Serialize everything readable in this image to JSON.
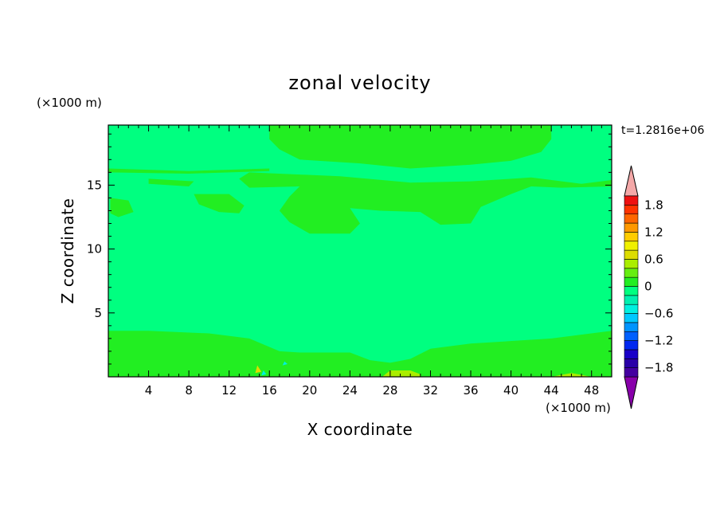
{
  "chart_data": {
    "type": "heatmap",
    "title": "zonal velocity",
    "xlabel": "X coordinate",
    "ylabel": "Z coordinate",
    "x_unit": "(×1000 m)",
    "y_unit": "(×1000 m)",
    "time_label": "t=1.2816e+06",
    "xlim": [
      0,
      50
    ],
    "ylim": [
      0,
      19.7
    ],
    "x_ticks": [
      4,
      8,
      12,
      16,
      20,
      24,
      28,
      32,
      36,
      40,
      44,
      48
    ],
    "y_ticks": [
      5,
      10,
      15
    ],
    "background_value": 0,
    "colorbar": {
      "levels": [
        -2.0,
        -1.8,
        -1.6,
        -1.4,
        -1.2,
        -1.0,
        -0.8,
        -0.6,
        -0.4,
        -0.2,
        0.0,
        0.2,
        0.4,
        0.6,
        0.8,
        1.0,
        1.2,
        1.4,
        1.6,
        1.8,
        2.0
      ],
      "labels": [
        "1.8",
        "1.2",
        "0.6",
        "0",
        "−0.6",
        "−1.2",
        "−1.8"
      ],
      "label_values": [
        1.8,
        1.2,
        0.6,
        0,
        -0.6,
        -1.2,
        -1.8
      ],
      "colors_low_to_high": [
        "#4400a0",
        "#2a00a8",
        "#1a00c8",
        "#0028f0",
        "#0060ff",
        "#0094ff",
        "#00c8ff",
        "#00f0e0",
        "#00f0b0",
        "#00ff80",
        "#22ee22",
        "#66ee11",
        "#aaee00",
        "#dddd00",
        "#f0f000",
        "#ffcc00",
        "#ff9900",
        "#ff6600",
        "#ff3300",
        "#ee1111"
      ],
      "under_color": "#8800aa",
      "over_color": "#f4a8a8"
    },
    "regions": [
      {
        "level": "0 to 0.2",
        "color": "#22ee22",
        "polygon": [
          [
            0,
            0
          ],
          [
            0,
            3.6
          ],
          [
            4,
            3.6
          ],
          [
            10,
            3.4
          ],
          [
            14,
            3.0
          ],
          [
            17,
            2.0
          ],
          [
            19,
            1.9
          ],
          [
            24,
            1.9
          ],
          [
            26,
            1.3
          ],
          [
            28,
            1.1
          ],
          [
            30,
            1.4
          ],
          [
            32,
            2.2
          ],
          [
            36,
            2.6
          ],
          [
            44,
            3.0
          ],
          [
            50,
            3.6
          ],
          [
            50,
            0
          ]
        ]
      },
      {
        "level": "0 to 0.2",
        "color": "#22ee22",
        "polygon": [
          [
            16,
            19.7
          ],
          [
            16,
            18.6
          ],
          [
            17,
            17.8
          ],
          [
            19,
            17.0
          ],
          [
            25,
            16.7
          ],
          [
            30,
            16.3
          ],
          [
            36,
            16.6
          ],
          [
            40,
            16.9
          ],
          [
            43,
            17.6
          ],
          [
            44,
            18.6
          ],
          [
            44,
            19.7
          ]
        ]
      },
      {
        "level": "0 to 0.2",
        "color": "#22ee22",
        "polygon": [
          [
            14,
            16.0
          ],
          [
            23,
            15.7
          ],
          [
            30,
            15.2
          ],
          [
            36,
            15.3
          ],
          [
            42,
            15.6
          ],
          [
            47,
            15.1
          ],
          [
            50,
            15.4
          ],
          [
            50,
            14.9
          ],
          [
            45,
            14.8
          ],
          [
            42,
            14.9
          ],
          [
            40,
            14.3
          ],
          [
            37,
            13.3
          ],
          [
            36,
            12.0
          ],
          [
            33,
            11.9
          ],
          [
            31,
            12.9
          ],
          [
            27,
            13.0
          ],
          [
            24,
            13.2
          ],
          [
            25,
            12.0
          ],
          [
            24,
            11.2
          ],
          [
            20,
            11.2
          ],
          [
            18,
            12.1
          ],
          [
            17,
            13.0
          ],
          [
            18,
            14.1
          ],
          [
            19,
            14.9
          ],
          [
            14,
            14.8
          ],
          [
            13,
            15.5
          ]
        ]
      },
      {
        "level": "0 to 0.2",
        "color": "#22ee22",
        "polygon": [
          [
            8.5,
            14.3
          ],
          [
            9,
            13.5
          ],
          [
            11,
            12.9
          ],
          [
            13,
            12.8
          ],
          [
            13.5,
            13.4
          ],
          [
            12,
            14.3
          ]
        ]
      },
      {
        "level": "0 to 0.2",
        "color": "#22ee22",
        "polygon": [
          [
            0.2,
            14.0
          ],
          [
            2,
            13.8
          ],
          [
            2.5,
            12.9
          ],
          [
            1,
            12.5
          ],
          [
            0.2,
            12.8
          ]
        ]
      },
      {
        "level": "0 to 0.2",
        "color": "#22ee22",
        "polygon": [
          [
            4,
            15.1
          ],
          [
            8,
            14.9
          ],
          [
            8.5,
            15.3
          ],
          [
            4,
            15.5
          ]
        ]
      },
      {
        "level": "0 to 0.2",
        "color": "#22ee22",
        "polygon": [
          [
            0,
            16.3
          ],
          [
            8,
            16.1
          ],
          [
            16,
            16.3
          ],
          [
            16,
            16.1
          ],
          [
            8,
            15.9
          ],
          [
            0,
            16.0
          ]
        ]
      },
      {
        "level": "0.2 to 0.6",
        "color": "#aaee00",
        "polygon": [
          [
            27.2,
            0
          ],
          [
            28,
            0.5
          ],
          [
            30,
            0.5
          ],
          [
            31,
            0.2
          ],
          [
            31,
            0
          ]
        ]
      },
      {
        "level": "0.2 to 0.6",
        "color": "#aaee00",
        "polygon": [
          [
            44,
            0
          ],
          [
            46,
            0.3
          ],
          [
            48,
            0
          ],
          [
            48,
            0
          ]
        ]
      },
      {
        "level": "0.4 to 0.8",
        "color": "#dddd00",
        "polygon": [
          [
            14.6,
            0.3
          ],
          [
            14.8,
            0.9
          ],
          [
            15.2,
            0.4
          ]
        ]
      },
      {
        "level": "-0.6 to -0.4",
        "color": "#00f0e0",
        "polygon": [
          [
            15.2,
            0.1
          ],
          [
            15.4,
            0.5
          ],
          [
            15.7,
            0.2
          ]
        ]
      },
      {
        "level": "-0.6 to -0.4",
        "color": "#00f0e0",
        "polygon": [
          [
            17.3,
            0.9
          ],
          [
            17.5,
            1.2
          ],
          [
            17.8,
            1.0
          ]
        ]
      },
      {
        "level": "-0.2 to 0",
        "color": "#00ff80",
        "polygon": [
          [
            26,
            1.5
          ],
          [
            27,
            1.7
          ],
          [
            28,
            1.6
          ],
          [
            27,
            1.3
          ]
        ]
      }
    ]
  }
}
